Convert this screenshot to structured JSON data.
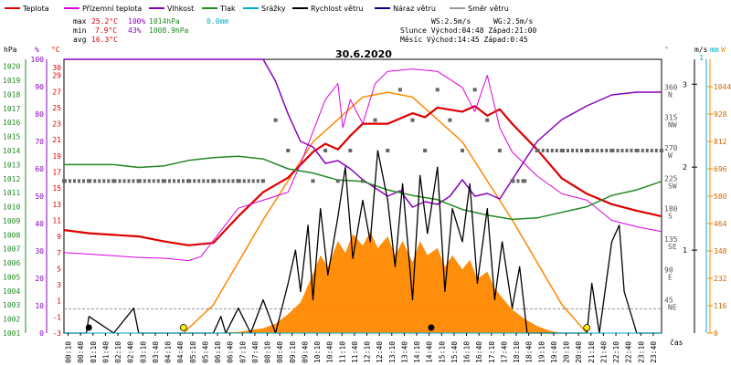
{
  "chart_data": {
    "type": "line",
    "title": "30.6.2020",
    "legend": [
      {
        "name": "Teplota",
        "color": "#dd0000"
      },
      {
        "name": "Přízemní teplota",
        "color": "#dd00dd"
      },
      {
        "name": "Vlhkost",
        "color": "#8800bb"
      },
      {
        "name": "Tlak",
        "color": "#228822"
      },
      {
        "name": "Srážky",
        "color": "#00aacc"
      },
      {
        "name": "Rychlost větru",
        "color": "#000000"
      },
      {
        "name": "Náraz větru",
        "color": "#000088"
      },
      {
        "name": "Směr větru",
        "color": "#999999"
      }
    ],
    "stats": {
      "max_label": "max",
      "max_temp": "25.2°C",
      "max_hum": "100%",
      "max_press": "1014hPa",
      "max_rain": "0.0mm",
      "min_label": "min",
      "min_temp": "7.9°C",
      "min_hum": "43%",
      "min_press": "1008.9hPa",
      "avg_label": "avg",
      "avg_temp": "16.3°C",
      "ws": "WS:2.5m/s",
      "wg": "WG:2.5m/s",
      "sun": "Slunce Východ:04:48   Západ:21:00",
      "moon": "Měsíc  Východ:14:45   Západ:0:45"
    },
    "axes": {
      "hpa_unit": "hPa",
      "pct_unit": "%",
      "temp_unit": "°C",
      "deg_unit": "°",
      "ms_unit": "m/s",
      "mm_unit": "mm",
      "w_unit": "W",
      "hpa_ticks": [
        "1020",
        "1019",
        "1018",
        "1017",
        "1016",
        "1015",
        "1014",
        "1013",
        "1012",
        "1011",
        "1010",
        "1009",
        "1008",
        "1007",
        "1006",
        "1005",
        "1004",
        "1003",
        "1002",
        "1001"
      ],
      "pct_ticks": [
        "100",
        "90",
        "80",
        "70",
        "60",
        "50",
        "40",
        "30",
        "20",
        "10",
        "0"
      ],
      "temp_ticks": [
        "30",
        "29",
        "27",
        "25",
        "23",
        "21",
        "19",
        "17",
        "15",
        "13",
        "11",
        "9",
        "7",
        "5",
        "3",
        "1",
        "-1",
        "-3"
      ],
      "dir_ticks": [
        "360 N",
        "315 NW",
        "270 W",
        "225 SW",
        "180 S",
        "135 SE",
        "90 E",
        "45 NE"
      ],
      "ms_ticks": [
        "3",
        "2",
        "1"
      ],
      "mm_ticks": [
        "1"
      ],
      "w_ticks": [
        "1044",
        "928",
        "812",
        "696",
        "580",
        "464",
        "348",
        "232",
        "116",
        "0"
      ],
      "time_ticks": [
        "00:10",
        "00:40",
        "01:10",
        "01:40",
        "02:10",
        "02:40",
        "03:10",
        "03:40",
        "04:10",
        "04:40",
        "05:10",
        "05:40",
        "06:10",
        "06:40",
        "07:10",
        "07:40",
        "08:10",
        "08:40",
        "09:10",
        "09:40",
        "10:10",
        "10:40",
        "11:10",
        "11:40",
        "12:10",
        "12:40",
        "13:10",
        "13:40",
        "14:10",
        "14:40",
        "15:10",
        "15:40",
        "16:10",
        "16:40",
        "17:10",
        "17:40",
        "18:10",
        "18:40",
        "19:10",
        "19:40",
        "20:10",
        "20:40",
        "21:10",
        "21:40",
        "22:10",
        "22:40",
        "23:10",
        "23:40"
      ],
      "time_unit": "čas"
    },
    "x_hours": [
      0,
      1,
      2,
      3,
      4,
      5,
      6,
      7,
      8,
      9,
      10,
      11,
      12,
      13,
      14,
      15,
      16,
      17,
      18,
      19,
      20,
      21,
      22,
      23,
      24
    ],
    "series": [
      {
        "name": "Teplota",
        "unit": "°C",
        "x": [
          0,
          1,
          2,
          3,
          4,
          5,
          6,
          7,
          8,
          9,
          10,
          10.5,
          11,
          11.5,
          12,
          13,
          14,
          14.5,
          15,
          16,
          16.5,
          17,
          17.5,
          18,
          19,
          20,
          21,
          22,
          23,
          24
        ],
        "values": [
          9.8,
          9.4,
          9.2,
          9.0,
          8.4,
          7.9,
          8.2,
          11.5,
          14.5,
          16.3,
          19.5,
          20.5,
          19.8,
          21.5,
          23.0,
          23.0,
          24.3,
          23.8,
          25.0,
          24.5,
          25.2,
          24.0,
          24.8,
          23.0,
          19.8,
          16.2,
          14.3,
          13.0,
          12.2,
          11.5
        ]
      },
      {
        "name": "Přízemní teplota",
        "unit": "°C",
        "x": [
          0,
          1,
          2,
          3,
          4,
          5,
          5.5,
          6,
          7,
          8,
          9,
          9.5,
          10,
          10.5,
          11,
          11.2,
          11.5,
          12,
          12.5,
          13,
          14,
          15,
          16,
          16.5,
          17,
          17.5,
          18,
          19,
          20,
          21,
          22,
          23,
          24
        ],
        "values": [
          7.0,
          6.8,
          6.6,
          6.4,
          6.3,
          6.0,
          6.5,
          8.5,
          12.5,
          13.5,
          14.5,
          18.0,
          22.0,
          26.0,
          28.0,
          22.5,
          26.0,
          23.0,
          28.0,
          29.5,
          29.8,
          29.5,
          27.5,
          24.5,
          29.0,
          22.5,
          19.5,
          16.5,
          14.3,
          13.5,
          11.0,
          10.2,
          9.6
        ]
      },
      {
        "name": "Vlhkost",
        "unit": "%",
        "x": [
          0,
          1,
          2,
          3,
          4,
          5,
          6,
          7,
          8,
          8.5,
          9,
          9.5,
          10,
          10.5,
          11,
          11.5,
          12,
          12.5,
          13,
          13.5,
          14,
          14.5,
          15,
          15.5,
          16,
          16.5,
          17,
          17.5,
          18,
          19,
          20,
          21,
          22,
          23,
          24
        ],
        "values": [
          100,
          100,
          100,
          100,
          100,
          100,
          100,
          100,
          100,
          92,
          80,
          70,
          68,
          62,
          63,
          60,
          56,
          53,
          50,
          52,
          46,
          48,
          47,
          50,
          56,
          50,
          51,
          49,
          56,
          70,
          78,
          83,
          87,
          88,
          88
        ]
      },
      {
        "name": "Tlak",
        "unit": "hPa",
        "x": [
          0,
          1,
          2,
          3,
          4,
          5,
          6,
          7,
          8,
          9,
          10,
          11,
          12,
          13,
          14,
          15,
          16,
          17,
          18,
          19,
          20,
          21,
          22,
          23,
          24
        ],
        "values": [
          1013.0,
          1013.0,
          1013.0,
          1012.8,
          1012.9,
          1013.3,
          1013.5,
          1013.6,
          1013.4,
          1012.7,
          1012.4,
          1011.9,
          1011.8,
          1011.2,
          1010.8,
          1010.5,
          1009.8,
          1009.4,
          1009.1,
          1009.2,
          1009.6,
          1010.0,
          1010.8,
          1011.2,
          1011.8
        ]
      },
      {
        "name": "Rychlost větru",
        "unit": "m/s",
        "x": [
          0,
          0.9,
          1,
          2,
          2.8,
          3,
          4,
          5,
          6,
          6.3,
          6.5,
          7,
          7.5,
          8,
          8.5,
          9,
          9.3,
          9.5,
          9.8,
          10,
          10.3,
          10.6,
          11,
          11.3,
          11.6,
          12,
          12.3,
          12.6,
          13,
          13.3,
          13.6,
          14,
          14.3,
          14.6,
          15,
          15.3,
          15.6,
          16,
          16.3,
          16.6,
          17,
          17.3,
          17.6,
          18,
          18.3,
          18.6,
          19,
          20,
          21,
          21.2,
          21.5,
          22,
          22.3,
          22.5,
          23,
          24
        ],
        "values": [
          0,
          0,
          0.2,
          0,
          0.3,
          0,
          0,
          0,
          0,
          0.2,
          0,
          0.3,
          0,
          0.4,
          0,
          0.6,
          1.0,
          0.5,
          1.3,
          0.4,
          1.5,
          0.7,
          1.4,
          2.0,
          0.9,
          1.6,
          1.1,
          2.2,
          1.6,
          0.8,
          1.8,
          0.4,
          1.9,
          1.2,
          2.0,
          0.5,
          1.5,
          1.1,
          1.8,
          0.6,
          1.5,
          0.4,
          1.1,
          0.3,
          0.8,
          0,
          0,
          0,
          0,
          0.6,
          0,
          1.1,
          1.3,
          0.5,
          0,
          0
        ]
      },
      {
        "name": "Srážky",
        "unit": "mm",
        "x": [
          0,
          24
        ],
        "values": [
          0,
          0
        ]
      }
    ],
    "solar_radiation": {
      "unit": "W",
      "x": [
        0,
        5,
        6,
        7,
        8,
        8.5,
        9,
        9.5,
        10,
        10.3,
        10.6,
        11,
        11.3,
        11.6,
        12,
        12.3,
        12.6,
        13,
        13.3,
        13.6,
        14,
        14.3,
        14.6,
        15,
        15.3,
        15.6,
        16,
        16.3,
        16.6,
        17,
        17.3,
        17.6,
        18,
        18.5,
        19,
        19.5,
        20,
        24
      ],
      "values": [
        0,
        0,
        2,
        5,
        20,
        40,
        80,
        130,
        250,
        330,
        280,
        390,
        340,
        420,
        370,
        430,
        360,
        410,
        330,
        390,
        300,
        390,
        330,
        360,
        280,
        330,
        270,
        310,
        230,
        260,
        190,
        150,
        100,
        60,
        30,
        10,
        0,
        0
      ]
    },
    "clear_sky_radiation": {
      "unit": "W",
      "x": [
        4.8,
        6,
        8,
        10,
        12,
        13,
        14,
        16,
        18,
        20,
        21
      ],
      "values": [
        0,
        120,
        480,
        810,
        1000,
        1020,
        1000,
        810,
        480,
        120,
        0
      ]
    },
    "wind_direction_deg": {
      "x": [
        0,
        1,
        2,
        3,
        4,
        5,
        6,
        7,
        8,
        8.5,
        9,
        10,
        10.5,
        11,
        11.5,
        12,
        12.5,
        13,
        13.5,
        14,
        14.5,
        15,
        15.5,
        16,
        16.5,
        17,
        17.5,
        18,
        18.5,
        19,
        20,
        21,
        22,
        23,
        24
      ],
      "values": [
        225,
        225,
        225,
        225,
        225,
        225,
        225,
        225,
        225,
        315,
        270,
        225,
        270,
        225,
        270,
        225,
        315,
        270,
        360,
        315,
        270,
        360,
        315,
        270,
        360,
        315,
        270,
        225,
        225,
        270,
        270,
        270,
        270,
        270,
        270
      ]
    },
    "ylim_temp": [
      -3,
      31
    ],
    "ylim_humidity": [
      0,
      100
    ],
    "ylim_pressure": [
      1001,
      1020.5
    ],
    "ylim_wind": [
      0,
      3.3
    ],
    "ylim_radiation": [
      0,
      1160
    ],
    "grid": false
  }
}
